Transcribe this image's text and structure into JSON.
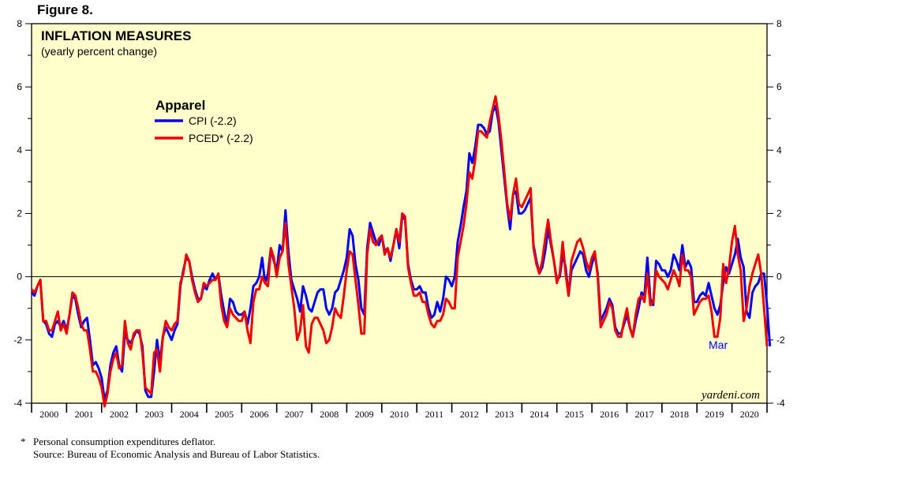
{
  "figure_label": "Figure 8.",
  "footnote": {
    "marker": "*",
    "definition": "Personal consumption expenditures deflator.",
    "source": "Source: Bureau of Economic Analysis and Bureau of Labor Statistics."
  },
  "colors": {
    "plot_bg": "#ffffcc",
    "cpi": "#0000ee",
    "pced": "#ee0000",
    "annotation": "#0000ee"
  },
  "chart_data": {
    "type": "line",
    "title": "INFLATION MEASURES",
    "subtitle": "(yearly percent change)",
    "legend_title": "Apparel",
    "legend_position": "upper-left",
    "xlabel": "",
    "ylabel": "",
    "x_start": 2000.0,
    "x_step": 0.0833333,
    "xlim": [
      2000.0,
      2021.0
    ],
    "ylim": [
      -4,
      8
    ],
    "y_ticks": [
      -4,
      -2,
      0,
      2,
      4,
      6,
      8
    ],
    "y_tick_labels": [
      "-4",
      "-2",
      "0",
      "2",
      "4",
      "6",
      "8"
    ],
    "x_tick_labels": [
      "2000",
      "2001",
      "2002",
      "2003",
      "2004",
      "2005",
      "2006",
      "2007",
      "2008",
      "2009",
      "2010",
      "2011",
      "2012",
      "2013",
      "2014",
      "2015",
      "2016",
      "2017",
      "2018",
      "2019",
      "2020"
    ],
    "zero_line": 0,
    "annotation": "Mar",
    "watermark": "yardeni.com",
    "series": [
      {
        "name": "CPI (-2.2)",
        "color": "#0000ee",
        "values": [
          -0.5,
          -0.6,
          -0.3,
          -0.1,
          -1.4,
          -1.5,
          -1.8,
          -1.9,
          -1.5,
          -1.4,
          -1.6,
          -1.4,
          -1.7,
          -1.2,
          -0.6,
          -0.7,
          -1.2,
          -1.6,
          -1.4,
          -1.3,
          -2.0,
          -2.8,
          -2.7,
          -2.9,
          -3.2,
          -3.9,
          -3.6,
          -2.8,
          -2.4,
          -2.2,
          -2.8,
          -3.0,
          -1.8,
          -2.0,
          -2.1,
          -1.9,
          -1.7,
          -1.8,
          -2.2,
          -3.6,
          -3.8,
          -3.8,
          -3.0,
          -2.0,
          -2.7,
          -1.9,
          -1.6,
          -1.8,
          -2.0,
          -1.7,
          -1.5,
          -0.3,
          0.2,
          0.6,
          0.5,
          0.0,
          -0.4,
          -0.7,
          -0.7,
          -0.3,
          -0.4,
          -0.1,
          0.1,
          -0.1,
          0.1,
          -0.6,
          -1.1,
          -1.5,
          -0.7,
          -0.8,
          -1.1,
          -1.2,
          -1.2,
          -1.1,
          -1.5,
          -1.0,
          -0.3,
          -0.2,
          0.0,
          0.6,
          -0.2,
          0.1,
          0.9,
          0.5,
          0.2,
          1.0,
          0.8,
          2.1,
          0.8,
          -0.1,
          -0.4,
          -0.7,
          -1.1,
          -0.3,
          -0.6,
          -1.0,
          -1.1,
          -0.8,
          -0.5,
          -0.4,
          -0.4,
          -1.0,
          -1.2,
          -1.0,
          -0.5,
          -0.4,
          -0.1,
          0.2,
          0.6,
          1.5,
          1.3,
          0.4,
          -0.1,
          -1.0,
          -1.2,
          0.9,
          1.7,
          1.4,
          1.1,
          1.0,
          1.3,
          0.8,
          0.9,
          0.5,
          1.0,
          1.5,
          0.9,
          1.9,
          1.8,
          0.4,
          -0.1,
          -0.4,
          -0.4,
          -0.3,
          -0.5,
          -0.5,
          -1.0,
          -1.3,
          -1.2,
          -0.8,
          -1.1,
          -0.7,
          0.0,
          -0.1,
          -0.3,
          0.0,
          1.1,
          1.6,
          2.2,
          2.7,
          3.9,
          3.6,
          4.1,
          4.8,
          4.8,
          4.7,
          4.5,
          4.6,
          5.2,
          5.4,
          4.9,
          4.0,
          3.1,
          2.2,
          1.5,
          2.6,
          2.7,
          2.0,
          2.0,
          2.1,
          2.3,
          2.5,
          1.0,
          0.5,
          0.1,
          0.3,
          0.8,
          1.5,
          1.0,
          0.5,
          -0.1,
          0.0,
          0.7,
          0.3,
          -0.6,
          0.2,
          0.4,
          0.6,
          0.8,
          0.7,
          0.2,
          0.0,
          0.4,
          0.7,
          0.1,
          -1.4,
          -1.2,
          -1.0,
          -0.7,
          -0.9,
          -1.6,
          -1.8,
          -1.8,
          -1.5,
          -1.2,
          -1.6,
          -1.9,
          -1.4,
          -1.0,
          -0.5,
          -0.6,
          0.6,
          -0.7,
          -0.9,
          0.5,
          0.4,
          0.2,
          0.2,
          0.0,
          0.2,
          0.7,
          0.5,
          0.2,
          1.0,
          0.3,
          0.5,
          0.3,
          -0.8,
          -0.8,
          -0.6,
          -0.5,
          -0.6,
          -0.2,
          -0.6,
          -1.0,
          -1.2,
          -0.9,
          -0.2,
          0.3,
          0.1,
          0.4,
          0.7,
          1.2,
          0.6,
          0.3,
          -1.1,
          -1.3,
          -0.5,
          -0.3,
          -0.2,
          0.1,
          0.1,
          -0.9,
          -2.2
        ]
      },
      {
        "name": "PCED* (-2.2)",
        "color": "#ee0000",
        "values": [
          -0.4,
          -0.5,
          -0.3,
          -0.1,
          -1.4,
          -1.4,
          -1.7,
          -1.7,
          -1.4,
          -1.1,
          -1.7,
          -1.5,
          -1.8,
          -1.2,
          -0.5,
          -0.6,
          -1.0,
          -1.5,
          -1.7,
          -1.7,
          -2.3,
          -3.0,
          -3.0,
          -3.2,
          -3.5,
          -4.1,
          -3.7,
          -3.0,
          -2.6,
          -2.4,
          -2.9,
          -2.8,
          -1.4,
          -2.1,
          -2.3,
          -1.8,
          -1.7,
          -1.7,
          -2.4,
          -3.5,
          -3.6,
          -3.7,
          -2.4,
          -2.3,
          -3.0,
          -1.9,
          -1.4,
          -1.6,
          -1.7,
          -1.5,
          -1.4,
          -0.2,
          0.1,
          0.7,
          0.5,
          -0.1,
          -0.5,
          -0.8,
          -0.7,
          -0.2,
          -0.3,
          -0.2,
          -0.1,
          -0.1,
          0.1,
          -0.9,
          -1.4,
          -1.6,
          -1.0,
          -1.2,
          -1.3,
          -1.4,
          -1.4,
          -1.1,
          -1.7,
          -2.1,
          -0.8,
          -0.4,
          -0.4,
          0.0,
          -0.2,
          -0.3,
          0.9,
          0.6,
          0.0,
          0.6,
          0.8,
          1.7,
          0.4,
          -0.3,
          -1.0,
          -2.0,
          -1.7,
          -0.9,
          -2.2,
          -2.4,
          -1.5,
          -1.3,
          -1.3,
          -1.5,
          -1.7,
          -2.1,
          -2.0,
          -1.6,
          -1.0,
          -1.2,
          -1.3,
          -0.6,
          0.2,
          0.8,
          0.7,
          -0.1,
          -0.9,
          -1.8,
          -1.8,
          0.7,
          1.5,
          1.1,
          1.0,
          1.2,
          1.3,
          0.7,
          0.9,
          0.6,
          1.0,
          1.5,
          1.1,
          2.0,
          1.9,
          0.3,
          -0.2,
          -0.6,
          -0.6,
          -0.5,
          -0.8,
          -0.8,
          -1.2,
          -1.5,
          -1.6,
          -1.4,
          -1.4,
          -1.2,
          -0.7,
          -0.8,
          -1.0,
          -1.0,
          0.6,
          1.1,
          1.6,
          2.3,
          3.3,
          3.1,
          3.7,
          4.6,
          4.6,
          4.5,
          4.4,
          4.9,
          5.3,
          5.7,
          5.1,
          4.3,
          3.3,
          2.3,
          1.8,
          2.6,
          3.1,
          2.3,
          2.2,
          2.4,
          2.6,
          2.8,
          0.9,
          0.4,
          0.1,
          0.5,
          1.2,
          1.8,
          1.1,
          0.5,
          -0.2,
          0.1,
          1.1,
          0.1,
          -0.6,
          0.5,
          0.8,
          1.1,
          1.2,
          0.9,
          0.5,
          0.2,
          0.6,
          0.8,
          0.0,
          -1.6,
          -1.4,
          -1.2,
          -0.8,
          -1.0,
          -1.7,
          -1.9,
          -1.9,
          -1.4,
          -1.0,
          -1.6,
          -1.9,
          -1.2,
          -0.7,
          -0.6,
          -0.8,
          0.1,
          -0.9,
          -0.8,
          0.2,
          0.0,
          -0.1,
          -0.2,
          -0.4,
          -0.1,
          0.2,
          0.0,
          -0.3,
          0.7,
          0.2,
          0.2,
          0.0,
          -1.2,
          -1.0,
          -0.8,
          -0.7,
          -0.7,
          -0.6,
          -1.1,
          -1.9,
          -1.9,
          -1.3,
          0.4,
          -0.2,
          0.3,
          1.1,
          1.6,
          0.7,
          0.2,
          -1.4,
          -1.0,
          -0.3,
          0.1,
          0.4,
          0.7,
          0.1,
          -1.0,
          -2.2
        ]
      }
    ]
  }
}
